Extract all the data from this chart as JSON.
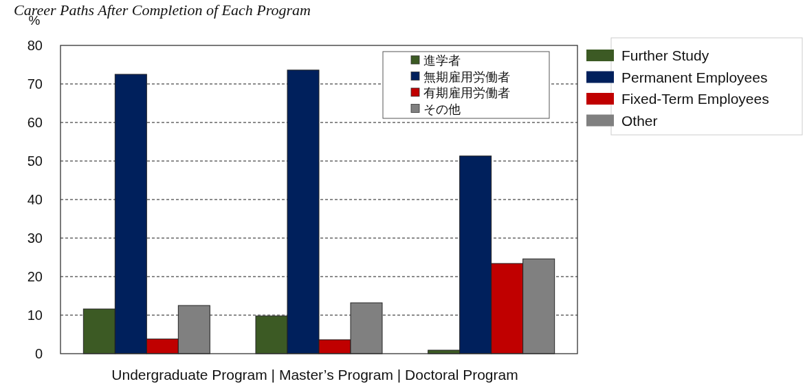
{
  "chart_data": {
    "type": "bar",
    "title": "Career Paths After Completion of Each Program",
    "ylabel": "%",
    "xlabel": "Undergraduate Program | Master’s Program | Doctoral Program",
    "categories": [
      null,
      null,
      null
    ],
    "series": [
      {
        "name": "Further Study",
        "color": "#3c5a24",
        "values": [
          11.6,
          9.8,
          0.9
        ]
      },
      {
        "name": "Permanent Employees",
        "color": "#00205c",
        "values": [
          72.5,
          73.6,
          51.3
        ]
      },
      {
        "name": "Fixed-Term Employees",
        "color": "#c00000",
        "values": [
          3.8,
          3.6,
          23.4
        ]
      },
      {
        "name": "Other",
        "color": "#808080",
        "values": [
          12.5,
          13.2,
          24.6
        ]
      }
    ],
    "annotations": [
      "進学者",
      "無期雇用労働者",
      "有期雇用労働者",
      "その他"
    ],
    "ylim": [
      0,
      80
    ],
    "yticks": [
      0,
      10,
      20,
      30,
      40,
      50,
      60,
      70,
      80
    ],
    "grid": "y",
    "legend": "right"
  }
}
